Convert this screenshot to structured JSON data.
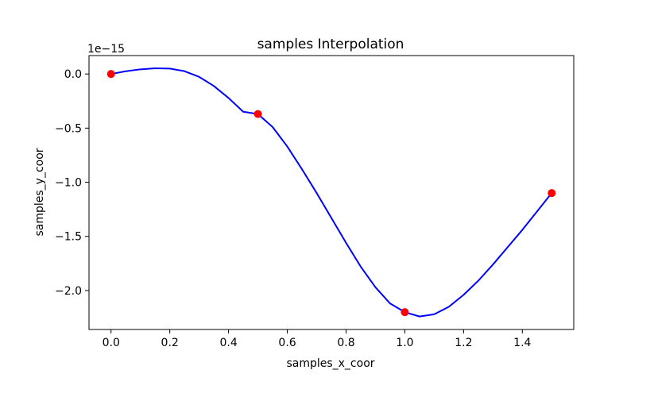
{
  "chart_data": {
    "type": "line",
    "title": "samples Interpolation",
    "xlabel": "samples_x_coor",
    "ylabel": "samples_y_coor",
    "y_offset_label": "1e−15",
    "xlim": [
      -0.075,
      1.575
    ],
    "ylim": [
      -2.36,
      0.17
    ],
    "xticks": [
      0.0,
      0.2,
      0.4,
      0.6,
      0.8,
      1.0,
      1.2,
      1.4
    ],
    "xtick_labels": [
      "0.0",
      "0.2",
      "0.4",
      "0.6",
      "0.8",
      "1.0",
      "1.2",
      "1.4"
    ],
    "yticks": [
      0.0,
      -0.5,
      -1.0,
      -1.5,
      -2.0
    ],
    "ytick_labels": [
      "0.0",
      "−0.5",
      "−1.0",
      "−1.5",
      "−2.0"
    ],
    "grid": false,
    "series": [
      {
        "kind": "interpolated-curve",
        "color": "#0000ff",
        "x": [
          0.0,
          0.05,
          0.1,
          0.15,
          0.2,
          0.25,
          0.3,
          0.35,
          0.4,
          0.45,
          0.5,
          0.55,
          0.6,
          0.65,
          0.7,
          0.75,
          0.8,
          0.85,
          0.9,
          0.95,
          1.0,
          1.05,
          1.1,
          1.15,
          1.2,
          1.25,
          1.3,
          1.35,
          1.4,
          1.45,
          1.5
        ],
        "y": [
          0.0,
          0.025,
          0.043,
          0.053,
          0.05,
          0.026,
          -0.027,
          -0.111,
          -0.222,
          -0.349,
          -0.37,
          -0.49,
          -0.67,
          -0.88,
          -1.1,
          -1.33,
          -1.56,
          -1.78,
          -1.97,
          -2.12,
          -2.2,
          -2.24,
          -2.22,
          -2.15,
          -2.04,
          -1.91,
          -1.76,
          -1.6,
          -1.44,
          -1.27,
          -1.1
        ]
      },
      {
        "kind": "sample-points",
        "color": "#ff0000",
        "x": [
          0.0,
          0.5,
          1.0,
          1.5
        ],
        "y": [
          0.0,
          -0.37,
          -2.2,
          -1.1
        ]
      }
    ]
  }
}
